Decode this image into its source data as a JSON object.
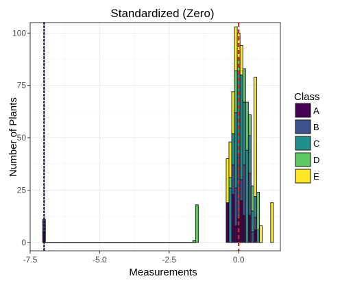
{
  "chart_data": {
    "type": "bar",
    "subtype": "stacked-histogram",
    "title": "Standardized (Zero)",
    "xlabel": "Measurements",
    "ylabel": "Number of Plants",
    "xlim": [
      -7.5,
      1.5
    ],
    "ylim": [
      -4,
      105
    ],
    "x_ticks": [
      -7.5,
      -5.0,
      -2.5,
      0.0
    ],
    "x_tick_labels": [
      "-7.5",
      "-5.0",
      "-2.5",
      "0.0"
    ],
    "y_ticks": [
      0,
      25,
      50,
      75,
      100
    ],
    "y_tick_labels": [
      "0",
      "25",
      "50",
      "75",
      "100"
    ],
    "grid": true,
    "legend": {
      "title": "Class",
      "position": "right"
    },
    "bin_width": 0.1,
    "vlines": [
      {
        "x": -7.0,
        "style": "dotted",
        "color": "#0d0d3a"
      },
      {
        "x": 0.0,
        "style": "dashed",
        "color": "#e3231d"
      }
    ],
    "series": [
      {
        "name": "A",
        "color": "#440154"
      },
      {
        "name": "B",
        "color": "#3b528b"
      },
      {
        "name": "C",
        "color": "#21908c"
      },
      {
        "name": "D",
        "color": "#5ec962"
      },
      {
        "name": "E",
        "color": "#fde725"
      }
    ],
    "bins": [
      {
        "x": -7.0,
        "counts": [
          5,
          6,
          0,
          0,
          0
        ]
      },
      {
        "x": -0.5,
        "counts": 0
      },
      {
        "x": -1.6,
        "counts": [
          0,
          0,
          0,
          1,
          0
        ]
      },
      {
        "x": -1.5,
        "counts": [
          0,
          0,
          0,
          18,
          0
        ]
      },
      {
        "x": -0.7,
        "counts": [
          0,
          0,
          0,
          0,
          0
        ]
      },
      {
        "x": -0.4,
        "counts": [
          19,
          0,
          0,
          0,
          21
        ]
      },
      {
        "x": -0.3,
        "counts": [
          0,
          0,
          26,
          5,
          17
        ]
      },
      {
        "x": -0.2,
        "counts": [
          23,
          14,
          15,
          0,
          20
        ]
      },
      {
        "x": -0.1,
        "counts": [
          8,
          18,
          36,
          20,
          21
        ]
      },
      {
        "x": 0.0,
        "counts": [
          12,
          30,
          40,
          6,
          12
        ]
      },
      {
        "x": 0.1,
        "counts": [
          20,
          10,
          50,
          0,
          14
        ]
      },
      {
        "x": 0.2,
        "counts": [
          13,
          24,
          30,
          16,
          0
        ]
      },
      {
        "x": 0.3,
        "counts": [
          0,
          0,
          44,
          23,
          0
        ]
      },
      {
        "x": 0.4,
        "counts": [
          13,
          20,
          18,
          10,
          0
        ]
      },
      {
        "x": 0.5,
        "counts": [
          0,
          5,
          10,
          12,
          0
        ]
      },
      {
        "x": 0.6,
        "counts": [
          6,
          6,
          10,
          0,
          57
        ]
      },
      {
        "x": 0.7,
        "counts": [
          0,
          0,
          6,
          18,
          0
        ]
      },
      {
        "x": 0.8,
        "counts": [
          0,
          0,
          0,
          0,
          8
        ]
      },
      {
        "x": 1.2,
        "counts": [
          0,
          0,
          0,
          0,
          19
        ]
      }
    ]
  }
}
